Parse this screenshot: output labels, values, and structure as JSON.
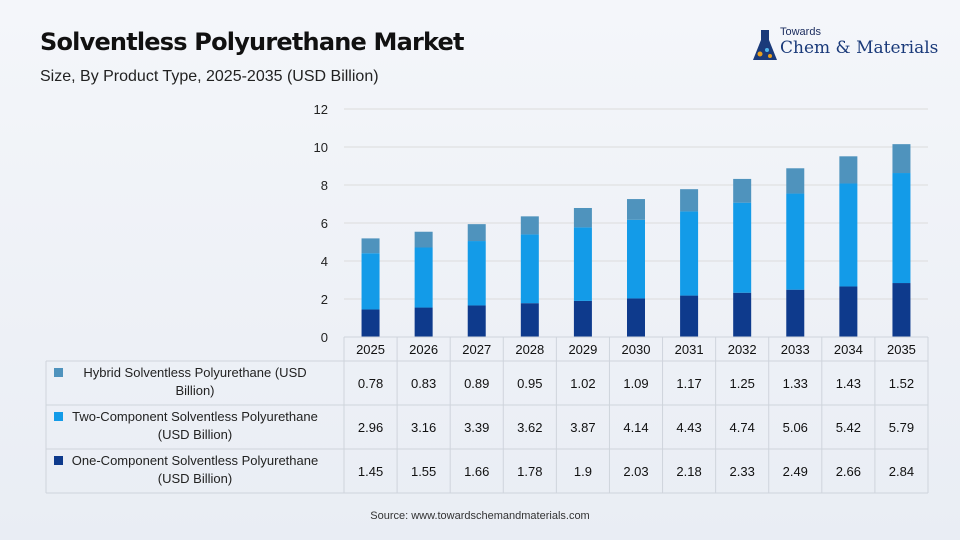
{
  "header": {
    "title": "Solventless Polyurethane Market",
    "subtitle": "Size, By Product Type, 2025-2035 (USD Billion)"
  },
  "logo": {
    "small": "Towards",
    "main": "Chem & Materials",
    "icon": "flask-icon"
  },
  "source": "Source: www.towardschemandmaterials.com",
  "colors": {
    "hybrid": "#4f93bd",
    "two_component": "#139be8",
    "one_component": "#0e3a8c",
    "grid": "#dcdcdc",
    "table_border": "#cfd4dc"
  },
  "chart_data": {
    "type": "bar",
    "stacked": true,
    "title": "Solventless Polyurethane Market",
    "subtitle": "Size, By Product Type, 2025-2035 (USD Billion)",
    "categories": [
      "2025",
      "2026",
      "2027",
      "2028",
      "2029",
      "2030",
      "2031",
      "2032",
      "2033",
      "2034",
      "2035"
    ],
    "ylim": [
      0,
      12
    ],
    "yticks": [
      0,
      2,
      4,
      6,
      8,
      10,
      12
    ],
    "grid": true,
    "legend": "data-table-left",
    "series": [
      {
        "name": "Hybrid Solventless Polyurethane (USD Billion)",
        "label_lines": [
          "Hybrid Solventless Polyurethane (USD",
          "Billion)"
        ],
        "color": "#4f93bd",
        "values": [
          0.78,
          0.83,
          0.89,
          0.95,
          1.02,
          1.09,
          1.17,
          1.25,
          1.33,
          1.43,
          1.52
        ]
      },
      {
        "name": "Two-Component Solventless Polyurethane (USD Billion)",
        "label_lines": [
          "Two-Component Solventless Polyurethane",
          "(USD Billion)"
        ],
        "color": "#139be8",
        "values": [
          2.96,
          3.16,
          3.39,
          3.62,
          3.87,
          4.14,
          4.43,
          4.74,
          5.06,
          5.42,
          5.79
        ]
      },
      {
        "name": "One-Component Solventless Polyurethane (USD Billion)",
        "label_lines": [
          "One-Component Solventless Polyurethane",
          "(USD Billion)"
        ],
        "color": "#0e3a8c",
        "values": [
          1.45,
          1.55,
          1.66,
          1.78,
          1.9,
          2.03,
          2.18,
          2.33,
          2.49,
          2.66,
          2.84
        ]
      }
    ]
  }
}
